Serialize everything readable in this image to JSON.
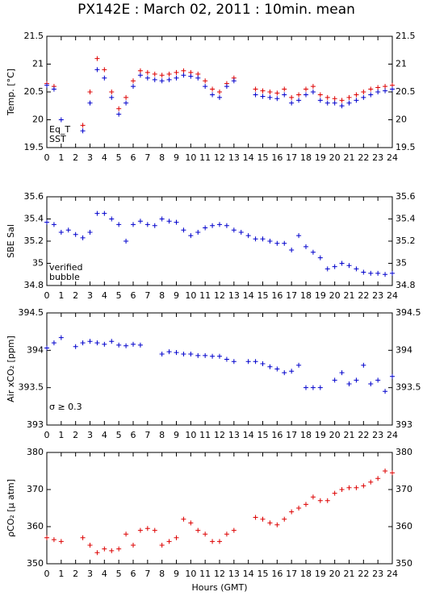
{
  "chart_data": [
    {
      "type": "scatter",
      "title": "PX142E : March 02, 2011 : 10min. mean",
      "ylabel": "Temp. [°C]",
      "xlim": [
        0,
        24
      ],
      "xticks": [
        0,
        1,
        2,
        3,
        4,
        5,
        6,
        7,
        8,
        9,
        10,
        11,
        12,
        13,
        14,
        15,
        16,
        17,
        18,
        19,
        20,
        21,
        22,
        23,
        24
      ],
      "ylim": [
        19.5,
        21.5
      ],
      "yticks": [
        19.5,
        20,
        20.5,
        21,
        21.5
      ],
      "series": [
        {
          "name": "Eq_T",
          "color": "#dd0000",
          "x": [
            0,
            0.5,
            1,
            1.5,
            2,
            2.5,
            3,
            3.5,
            4,
            4.5,
            5,
            5.5,
            6,
            6.5,
            7,
            7.5,
            8,
            8.5,
            9,
            9.5,
            10,
            10.5,
            11,
            11.5,
            12,
            12.5,
            13,
            13.5,
            14,
            14.5,
            15,
            15.5,
            16,
            16.5,
            17,
            17.5,
            18,
            18.5,
            19,
            19.5,
            20,
            20.5,
            21,
            21.5,
            22,
            22.5,
            23,
            23.5,
            24
          ],
          "values": [
            20.65,
            20.6,
            null,
            null,
            null,
            19.9,
            20.5,
            21.1,
            20.9,
            20.5,
            20.2,
            20.4,
            20.7,
            20.88,
            20.85,
            20.82,
            20.8,
            20.82,
            20.85,
            20.88,
            20.85,
            20.82,
            20.7,
            20.55,
            20.5,
            20.65,
            20.75,
            null,
            null,
            20.55,
            20.52,
            20.5,
            20.48,
            20.55,
            20.4,
            20.45,
            20.55,
            20.6,
            20.45,
            20.4,
            20.38,
            20.35,
            20.4,
            20.45,
            20.5,
            20.55,
            20.58,
            20.6,
            20.62
          ]
        },
        {
          "name": "SST",
          "color": "#0000cc",
          "x": [
            0,
            0.5,
            1,
            1.5,
            2,
            2.5,
            3,
            3.5,
            4,
            4.5,
            5,
            5.5,
            6,
            6.5,
            7,
            7.5,
            8,
            8.5,
            9,
            9.5,
            10,
            10.5,
            11,
            11.5,
            12,
            12.5,
            13,
            13.5,
            14,
            14.5,
            15,
            15.5,
            16,
            16.5,
            17,
            17.5,
            18,
            18.5,
            19,
            19.5,
            20,
            20.5,
            21,
            21.5,
            22,
            22.5,
            23,
            23.5,
            24
          ],
          "values": [
            20.62,
            20.55,
            20.0,
            null,
            null,
            19.8,
            20.3,
            20.9,
            20.75,
            20.4,
            20.1,
            20.3,
            20.6,
            20.8,
            20.75,
            20.72,
            20.7,
            20.72,
            20.75,
            20.8,
            20.78,
            20.75,
            20.6,
            20.45,
            20.4,
            20.6,
            20.7,
            null,
            null,
            20.45,
            20.42,
            20.4,
            20.38,
            20.45,
            20.3,
            20.35,
            20.45,
            20.5,
            20.35,
            20.3,
            20.3,
            20.25,
            20.3,
            20.35,
            20.4,
            20.45,
            20.5,
            20.52,
            20.55
          ]
        }
      ]
    },
    {
      "type": "scatter",
      "ylabel": "SBE Sal",
      "xlim": [
        0,
        24
      ],
      "xticks": [
        0,
        1,
        2,
        3,
        4,
        5,
        6,
        7,
        8,
        9,
        10,
        11,
        12,
        13,
        14,
        15,
        16,
        17,
        18,
        19,
        20,
        21,
        22,
        23,
        24
      ],
      "ylim": [
        34.8,
        35.6
      ],
      "yticks": [
        34.8,
        35,
        35.2,
        35.4,
        35.6
      ],
      "series": [
        {
          "name": "verified",
          "color": "#0000cc",
          "x": [
            0,
            0.5,
            1,
            1.5,
            2,
            2.5,
            3,
            3.5,
            4,
            4.5,
            5,
            5.5,
            6,
            6.5,
            7,
            7.5,
            8,
            8.5,
            9,
            9.5,
            10,
            10.5,
            11,
            11.5,
            12,
            12.5,
            13,
            13.5,
            14,
            14.5,
            15,
            15.5,
            16,
            16.5,
            17,
            17.5,
            18,
            18.5,
            19,
            19.5,
            20,
            20.5,
            21,
            21.5,
            22,
            22.5,
            23,
            23.5,
            24
          ],
          "values": [
            35.37,
            35.35,
            35.28,
            35.3,
            35.26,
            35.23,
            35.28,
            35.45,
            35.45,
            35.4,
            35.35,
            35.2,
            35.35,
            35.38,
            35.35,
            35.34,
            35.4,
            35.38,
            35.37,
            35.3,
            35.25,
            35.28,
            35.32,
            35.34,
            35.35,
            35.34,
            35.3,
            35.28,
            35.25,
            35.22,
            35.22,
            35.2,
            35.18,
            35.18,
            35.12,
            35.25,
            35.15,
            35.1,
            35.05,
            34.95,
            34.97,
            35.0,
            34.98,
            34.95,
            34.92,
            34.91,
            34.91,
            34.9,
            34.91
          ]
        },
        {
          "name": "bubble",
          "color": "#cc00cc",
          "x": [],
          "values": []
        }
      ]
    },
    {
      "type": "scatter",
      "ylabel": "Air xCO₂ [ppm]",
      "annotation": "σ ≥ 0.3",
      "annotation_color": "#cc00cc",
      "xlim": [
        0,
        24
      ],
      "xticks": [
        0,
        1,
        2,
        3,
        4,
        5,
        6,
        7,
        8,
        9,
        10,
        11,
        12,
        13,
        14,
        15,
        16,
        17,
        18,
        19,
        20,
        21,
        22,
        23,
        24
      ],
      "ylim": [
        393,
        394.5
      ],
      "yticks": [
        393,
        393.5,
        394,
        394.5
      ],
      "series": [
        {
          "name": "Air xCO₂",
          "color": "#0000cc",
          "x": [
            0,
            0.5,
            1,
            1.5,
            2,
            2.5,
            3,
            3.5,
            4,
            4.5,
            5,
            5.5,
            6,
            6.5,
            7,
            7.5,
            8,
            8.5,
            9,
            9.5,
            10,
            10.5,
            11,
            11.5,
            12,
            12.5,
            13,
            13.5,
            14,
            14.5,
            15,
            15.5,
            16,
            16.5,
            17,
            17.5,
            18,
            18.5,
            19,
            19.5,
            20,
            20.5,
            21,
            21.5,
            22,
            22.5,
            23,
            23.5,
            24
          ],
          "values": [
            394.03,
            394.1,
            394.17,
            null,
            394.05,
            394.1,
            394.12,
            394.1,
            394.08,
            394.12,
            394.07,
            394.06,
            394.08,
            394.07,
            null,
            null,
            393.95,
            393.98,
            393.97,
            393.95,
            393.95,
            393.93,
            393.93,
            393.92,
            393.92,
            393.88,
            393.85,
            null,
            393.85,
            393.85,
            393.82,
            393.78,
            393.75,
            393.7,
            393.72,
            393.8,
            393.5,
            393.5,
            393.5,
            null,
            393.6,
            393.7,
            393.55,
            393.6,
            393.8,
            393.55,
            393.6,
            393.45,
            393.65
          ]
        }
      ]
    },
    {
      "type": "scatter",
      "ylabel": "ρCO₂ [μ atm]",
      "xlabel": "Hours (GMT)",
      "xlim": [
        0,
        24
      ],
      "xticks": [
        0,
        1,
        2,
        3,
        4,
        5,
        6,
        7,
        8,
        9,
        10,
        11,
        12,
        13,
        14,
        15,
        16,
        17,
        18,
        19,
        20,
        21,
        22,
        23,
        24
      ],
      "ylim": [
        350,
        380
      ],
      "yticks": [
        350,
        360,
        370,
        380
      ],
      "series": [
        {
          "name": "ρCO₂",
          "color": "#dd0000",
          "x": [
            0,
            0.5,
            1,
            1.5,
            2,
            2.5,
            3,
            3.5,
            4,
            4.5,
            5,
            5.5,
            6,
            6.5,
            7,
            7.5,
            8,
            8.5,
            9,
            9.5,
            10,
            10.5,
            11,
            11.5,
            12,
            12.5,
            13,
            13.5,
            14,
            14.5,
            15,
            15.5,
            16,
            16.5,
            17,
            17.5,
            18,
            18.5,
            19,
            19.5,
            20,
            20.5,
            21,
            21.5,
            22,
            22.5,
            23,
            23.5,
            24
          ],
          "values": [
            357,
            356.5,
            356,
            null,
            null,
            357,
            355,
            353,
            354,
            353.5,
            354,
            358,
            355,
            359,
            359.5,
            359,
            355,
            356,
            357,
            362,
            361,
            359,
            358,
            356,
            356,
            358,
            359,
            null,
            null,
            362.5,
            362,
            361,
            360.5,
            362,
            364,
            365,
            366,
            368,
            367,
            367,
            369,
            370,
            370.5,
            370.5,
            371,
            372,
            373,
            375,
            374.5
          ]
        }
      ]
    }
  ]
}
